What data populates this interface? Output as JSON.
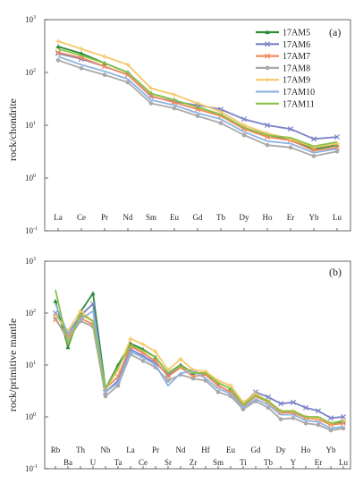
{
  "figure": {
    "panel_a_label": "(a)",
    "panel_b_label": "(b)"
  },
  "legend": [
    {
      "name": "17AM5",
      "color": "#2e8b3a",
      "marker": "triangle"
    },
    {
      "name": "17AM6",
      "color": "#7a82c8",
      "marker": "x"
    },
    {
      "name": "17AM7",
      "color": "#f08a5d",
      "marker": "x"
    },
    {
      "name": "17AM8",
      "color": "#a9a9a9",
      "marker": "circle"
    },
    {
      "name": "17AM9",
      "color": "#f7c86a",
      "marker": "plus"
    },
    {
      "name": "17AM10",
      "color": "#8fb4e3",
      "marker": "none"
    },
    {
      "name": "17AM11",
      "color": "#8bc34a",
      "marker": "none"
    }
  ],
  "chart_data": [
    {
      "type": "line",
      "panel": "a",
      "ylabel": "rock/chondrite",
      "yscale": "log",
      "ylim": [
        0.1,
        1000
      ],
      "yticks": [
        {
          "base": "10",
          "exp": "3"
        },
        {
          "base": "10",
          "exp": "2"
        },
        {
          "base": "10",
          "exp": "1"
        },
        {
          "base": "10",
          "exp": "0"
        },
        {
          "base": "10",
          "exp": "-1"
        }
      ],
      "categories": [
        "La",
        "Ce",
        "Pr",
        "Nd",
        "Sm",
        "Eu",
        "Gd",
        "Tb",
        "Dy",
        "Ho",
        "Er",
        "Yb",
        "Lu"
      ],
      "series": [
        {
          "name": "17AM5",
          "values": [
            310,
            230,
            150,
            100,
            40,
            30,
            22,
            16,
            9,
            6.5,
            5.5,
            3.5,
            4.2
          ]
        },
        {
          "name": "17AM6",
          "values": [
            230,
            180,
            130,
            90,
            35,
            28,
            24,
            20,
            13,
            10,
            8.5,
            5.5,
            6.0
          ]
        },
        {
          "name": "17AM7",
          "values": [
            240,
            190,
            130,
            90,
            36,
            27,
            20,
            15,
            8.5,
            6,
            5.2,
            3.3,
            3.8
          ]
        },
        {
          "name": "17AM8",
          "values": [
            170,
            120,
            90,
            65,
            26,
            21,
            15,
            11,
            6.5,
            4.2,
            3.8,
            2.6,
            3.2
          ]
        },
        {
          "name": "17AM9",
          "values": [
            390,
            280,
            200,
            140,
            50,
            38,
            26,
            18,
            10,
            7,
            5.5,
            3.8,
            4.5
          ]
        },
        {
          "name": "17AM10",
          "values": [
            200,
            140,
            105,
            75,
            30,
            24,
            17,
            13,
            7.5,
            5,
            4.5,
            3.0,
            3.6
          ]
        },
        {
          "name": "17AM11",
          "values": [
            280,
            210,
            150,
            100,
            40,
            30,
            22,
            16,
            9,
            6.5,
            5.8,
            4.0,
            4.8
          ]
        }
      ]
    },
    {
      "type": "line",
      "panel": "b",
      "ylabel": "rock/primitive mantle",
      "yscale": "log",
      "ylim": [
        0.1,
        1000
      ],
      "yticks": [
        {
          "base": "10",
          "exp": "3"
        },
        {
          "base": "10",
          "exp": "2"
        },
        {
          "base": "10",
          "exp": "1"
        },
        {
          "base": "10",
          "exp": "0"
        },
        {
          "base": "10",
          "exp": "-1"
        }
      ],
      "categories": [
        "Rb",
        "Ba",
        "Th",
        "U",
        "Nb",
        "Ta",
        "La",
        "Ce",
        "Pr",
        "Sr",
        "Nd",
        "Zr",
        "Hf",
        "Sm",
        "Eu",
        "Ti",
        "Gd",
        "Tb",
        "Dy",
        "Y",
        "Ho",
        "Er",
        "Yb",
        "Lu"
      ],
      "series": [
        {
          "name": "17AM5",
          "values": [
            170,
            22,
            105,
            240,
            3.5,
            10,
            26,
            20,
            14,
            7,
            10,
            7,
            7,
            4.5,
            3.5,
            1.7,
            2.7,
            2.0,
            1.3,
            1.2,
            1.0,
            0.95,
            0.75,
            0.8
          ]
        },
        {
          "name": "17AM6",
          "values": [
            100,
            40,
            90,
            150,
            3,
            5,
            20,
            15,
            11,
            6.5,
            9,
            7.5,
            6.5,
            4,
            3,
            1.8,
            3.0,
            2.4,
            1.8,
            1.9,
            1.5,
            1.3,
            0.95,
            1.0
          ]
        },
        {
          "name": "17AM7",
          "values": [
            75,
            35,
            80,
            60,
            3.5,
            6,
            23,
            17,
            12,
            6,
            9,
            6,
            6.5,
            4,
            3,
            1.6,
            2.5,
            1.9,
            1.2,
            1.2,
            0.95,
            0.9,
            0.7,
            0.75
          ]
        },
        {
          "name": "17AM8",
          "values": [
            80,
            30,
            70,
            55,
            2.5,
            4,
            16,
            12,
            9,
            5,
            6.5,
            5.5,
            5,
            3,
            2.5,
            1.4,
            2.0,
            1.5,
            0.9,
            0.95,
            0.75,
            0.7,
            0.55,
            0.6
          ]
        },
        {
          "name": "17AM9",
          "values": [
            90,
            45,
            110,
            70,
            3.5,
            8,
            32,
            25,
            18,
            8,
            13,
            8,
            7.5,
            5,
            4,
            1.9,
            2.8,
            2.0,
            1.3,
            1.3,
            1.0,
            0.95,
            0.75,
            0.85
          ]
        },
        {
          "name": "17AM10",
          "values": [
            150,
            40,
            75,
            110,
            3,
            4.5,
            18,
            14,
            10,
            4,
            7,
            7.5,
            5.5,
            3.5,
            2.8,
            1.5,
            2.2,
            1.7,
            1.1,
            1.1,
            0.85,
            0.8,
            0.6,
            0.65
          ]
        },
        {
          "name": "17AM11",
          "values": [
            280,
            25,
            95,
            70,
            3.5,
            9,
            24,
            19,
            14,
            7,
            9.5,
            7,
            7,
            4.5,
            3.5,
            1.7,
            2.6,
            2.0,
            1.3,
            1.3,
            1.0,
            1.0,
            0.75,
            0.85
          ]
        }
      ]
    }
  ]
}
